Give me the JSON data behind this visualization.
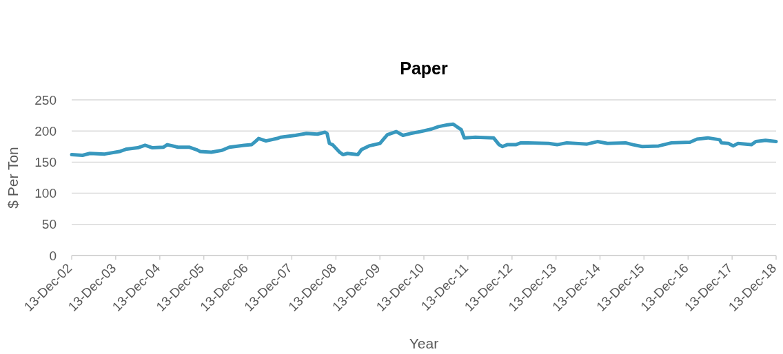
{
  "chart_data": {
    "type": "line",
    "title": "Paper",
    "xlabel": "Year",
    "ylabel": "$ Per Ton",
    "x": [
      "2002-12-13",
      "2003-03-13",
      "2003-05-13",
      "2003-09-13",
      "2004-01-13",
      "2004-03-13",
      "2004-06-13",
      "2004-08-13",
      "2004-10-13",
      "2005-01-13",
      "2005-02-13",
      "2005-05-13",
      "2005-08-13",
      "2005-10-13",
      "2005-11-13",
      "2006-02-13",
      "2006-05-13",
      "2006-07-13",
      "2006-11-13",
      "2007-01-13",
      "2007-02-13",
      "2007-03-13",
      "2007-05-13",
      "2007-08-13",
      "2007-09-13",
      "2008-01-13",
      "2008-04-13",
      "2008-07-13",
      "2008-09-13",
      "2008-10-01",
      "2008-10-20",
      "2008-11-15",
      "2009-01-13",
      "2009-02-10",
      "2009-03-19",
      "2009-06-13",
      "2009-07-13",
      "2009-09-13",
      "2009-12-13",
      "2010-01-13",
      "2010-02-13",
      "2010-04-28",
      "2010-06-22",
      "2010-08-25",
      "2010-11-13",
      "2011-02-13",
      "2011-04-13",
      "2011-06-28",
      "2011-08-13",
      "2011-10-19",
      "2011-11-13",
      "2012-02-13",
      "2012-07-13",
      "2012-08-28",
      "2012-09-25",
      "2012-11-03",
      "2013-01-13",
      "2013-02-25",
      "2013-04-22",
      "2013-10-13",
      "2013-12-22",
      "2014-03-13",
      "2014-08-28",
      "2014-11-22",
      "2015-02-13",
      "2015-07-13",
      "2015-09-13",
      "2015-11-28",
      "2016-04-13",
      "2016-07-28",
      "2016-12-28",
      "2017-02-25",
      "2017-05-25",
      "2017-08-31",
      "2017-09-16",
      "2017-11-13",
      "2017-12-22",
      "2018-01-31",
      "2018-05-22",
      "2018-06-28",
      "2018-09-16",
      "2018-12-13"
    ],
    "values": [
      162,
      161,
      164,
      163,
      167,
      171,
      173,
      177,
      173,
      174,
      178,
      174,
      174,
      170,
      167,
      166,
      169,
      174,
      177,
      178,
      183,
      188,
      184,
      188,
      190,
      193,
      196,
      195,
      198,
      196,
      180,
      178,
      166,
      162,
      164,
      162,
      170,
      176,
      180,
      187,
      194,
      199,
      193,
      196,
      199,
      203,
      207,
      210,
      211,
      202,
      189,
      190,
      189,
      178,
      175,
      178,
      178,
      181,
      181,
      180,
      178,
      181,
      179,
      183,
      180,
      181,
      178,
      175,
      176,
      181,
      182,
      187,
      189,
      186,
      181,
      180,
      176,
      180,
      178,
      183,
      185,
      183
    ],
    "color": "#3898be",
    "line_style": "solid",
    "grid": "y",
    "xlim": [
      "2002-12-13",
      "2018-12-13"
    ],
    "xticks": [
      {
        "value": "2002-12-13",
        "label": "13-Dec-02"
      },
      {
        "value": "2003-12-13",
        "label": "13-Dec-03"
      },
      {
        "value": "2004-12-13",
        "label": "13-Dec-04"
      },
      {
        "value": "2005-12-13",
        "label": "13-Dec-05"
      },
      {
        "value": "2006-12-13",
        "label": "13-Dec-06"
      },
      {
        "value": "2007-12-13",
        "label": "13-Dec-07"
      },
      {
        "value": "2008-12-13",
        "label": "13-Dec-08"
      },
      {
        "value": "2009-12-13",
        "label": "13-Dec-09"
      },
      {
        "value": "2010-12-13",
        "label": "13-Dec-10"
      },
      {
        "value": "2011-12-13",
        "label": "13-Dec-11"
      },
      {
        "value": "2012-12-13",
        "label": "13-Dec-12"
      },
      {
        "value": "2013-12-13",
        "label": "13-Dec-13"
      },
      {
        "value": "2014-12-13",
        "label": "13-Dec-14"
      },
      {
        "value": "2015-12-13",
        "label": "13-Dec-15"
      },
      {
        "value": "2016-12-13",
        "label": "13-Dec-16"
      },
      {
        "value": "2017-12-13",
        "label": "13-Dec-17"
      },
      {
        "value": "2018-12-13",
        "label": "13-Dec-18"
      }
    ],
    "ylim": [
      0,
      250
    ],
    "yticks": [
      0,
      50,
      100,
      150,
      200,
      250
    ]
  }
}
